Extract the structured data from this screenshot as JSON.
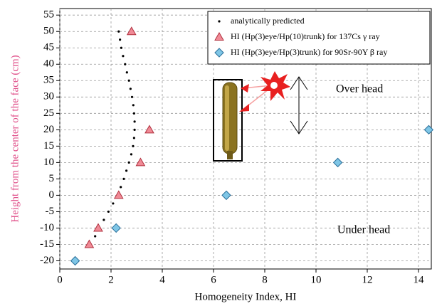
{
  "chart_data": {
    "type": "scatter",
    "xlabel": "Homogeneity Index, HI",
    "ylabel": "Height from the center of the face (cm)",
    "xlim": [
      0,
      14.5
    ],
    "ylim": [
      -22.5,
      57
    ],
    "xticks": [
      0,
      2,
      4,
      6,
      8,
      10,
      12,
      14
    ],
    "yticks": [
      -20,
      -15,
      -10,
      -5,
      0,
      5,
      10,
      15,
      20,
      25,
      30,
      35,
      40,
      45,
      50,
      55
    ],
    "grid": true,
    "legend": "upper right",
    "annotations": [
      "Over head",
      "Under head"
    ],
    "series": [
      {
        "name": "analytically predicted",
        "marker": "dot",
        "color": "#000000",
        "x": [
          2.3,
          2.35,
          2.4,
          2.47,
          2.55,
          2.62,
          2.7,
          2.76,
          2.82,
          2.87,
          2.9,
          2.92,
          2.92,
          2.9,
          2.86,
          2.79,
          2.7,
          2.6,
          2.5,
          2.38,
          2.25,
          2.08,
          1.9,
          1.72,
          1.55,
          1.38,
          1.2
        ],
        "values": [
          50,
          47.5,
          45,
          42.5,
          40,
          37.5,
          35,
          32.5,
          30,
          27.5,
          25,
          22.5,
          20,
          17.5,
          15,
          12.5,
          10,
          7.5,
          5,
          2.5,
          0,
          -2.5,
          -5,
          -7.5,
          -10,
          -12.5,
          -15
        ]
      },
      {
        "name": "HI (Hp(3)eye/Hp(10)trunk) for 137Cs γ ray",
        "marker": "triangle",
        "color": "#f08a96",
        "x": [
          2.8,
          3.5,
          3.15,
          2.3,
          1.5,
          1.15
        ],
        "values": [
          50,
          20,
          10,
          0,
          -10,
          -15
        ]
      },
      {
        "name": "HI (Hp(3)eye/Hp(3)trunk) for 90Sr-90Y β ray",
        "marker": "diamond",
        "color": "#7fc6e6",
        "x": [
          14.4,
          10.85,
          6.5,
          2.2,
          0.6
        ],
        "values": [
          20,
          10,
          0,
          -10,
          -20
        ]
      }
    ]
  }
}
